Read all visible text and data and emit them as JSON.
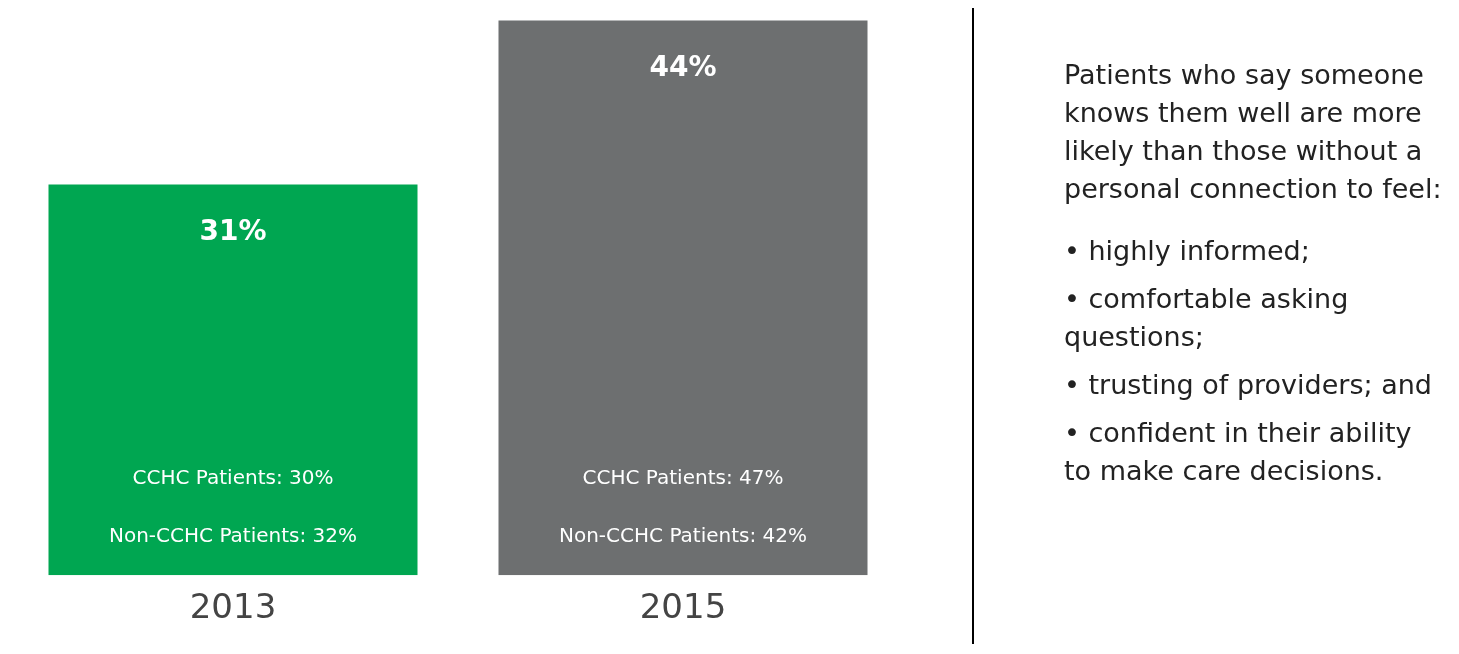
{
  "chart_data": {
    "type": "bar",
    "categories": [
      "2013",
      "2015"
    ],
    "values": [
      31,
      44
    ],
    "value_labels": [
      "31%",
      "44%"
    ],
    "colors": [
      "#00a651",
      "#6d6f70"
    ],
    "annotations": [
      "CCHC Patients: 30%",
      "Non-CCHC Patients: 32%",
      "CCHC Patients: 47%",
      "Non-CCHC Patients: 42%",
      "Patients who say someone knows them well are more likely than those without a personal connection to feel:",
      "• highly informed;",
      "• comfortable asking questions;",
      "• trusting of providers; and",
      "• confident in their ability to make care decisions."
    ],
    "legend": false,
    "grid": false
  }
}
